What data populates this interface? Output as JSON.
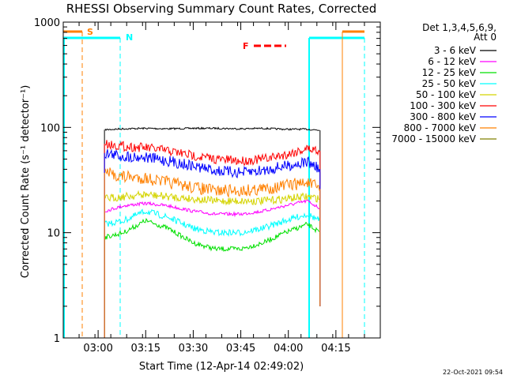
{
  "chart_data": {
    "type": "line",
    "title": "RHESSI Observing Summary Count Rates, Corrected",
    "xlabel": "Start Time (12-Apr-14 02:49:02)",
    "ylabel": "Corrected Count Rate (s⁻¹ detector⁻¹)",
    "y_scale": "log",
    "ylim": [
      1,
      1000
    ],
    "y_ticks": [
      1,
      10,
      100,
      1000
    ],
    "xlim": [
      "02:49",
      "04:29"
    ],
    "x_ticks": [
      "03:00",
      "03:15",
      "03:30",
      "03:45",
      "04:00",
      "04:15"
    ],
    "grid": false,
    "legend_position": "right",
    "legend_header": "Det 1,3,4,5,6,9,",
    "legend_subheader": "Att 0",
    "series": [
      {
        "name": "3 - 6 keV",
        "color": "#000000",
        "x": [
          "03:02",
          "03:08",
          "03:15",
          "03:22",
          "03:30",
          "03:37",
          "03:45",
          "03:52",
          "03:59",
          "04:06",
          "04:10"
        ],
        "values": [
          95,
          97,
          98,
          97,
          98,
          98,
          97,
          98,
          96,
          96,
          94
        ]
      },
      {
        "name": "6 - 12 keV",
        "color": "#ff00ff",
        "x": [
          "03:02",
          "03:08",
          "03:15",
          "03:22",
          "03:30",
          "03:37",
          "03:45",
          "03:52",
          "03:59",
          "04:06",
          "04:10"
        ],
        "values": [
          16,
          18,
          19,
          18,
          16,
          15,
          15,
          16,
          18,
          20,
          17
        ]
      },
      {
        "name": "12 - 25 keV",
        "color": "#00e000",
        "x": [
          "03:02",
          "03:08",
          "03:15",
          "03:22",
          "03:30",
          "03:37",
          "03:45",
          "03:52",
          "03:59",
          "04:06",
          "04:10"
        ],
        "values": [
          9,
          10,
          13,
          11,
          8,
          7,
          7,
          8,
          10,
          12,
          10
        ]
      },
      {
        "name": "25 - 50 keV",
        "color": "#00ffff",
        "x": [
          "03:02",
          "03:08",
          "03:15",
          "03:22",
          "03:30",
          "03:37",
          "03:45",
          "03:52",
          "03:59",
          "04:06",
          "04:10"
        ],
        "values": [
          12,
          13,
          16,
          14,
          11,
          10,
          10,
          11,
          13,
          15,
          13
        ]
      },
      {
        "name": "50 - 100 keV",
        "color": "#d4d400",
        "x": [
          "03:02",
          "03:08",
          "03:15",
          "03:22",
          "03:30",
          "03:37",
          "03:45",
          "03:52",
          "03:59",
          "04:06",
          "04:10"
        ],
        "values": [
          21,
          22,
          23,
          22,
          21,
          20,
          20,
          20,
          21,
          22,
          21
        ]
      },
      {
        "name": "100 - 300 keV",
        "color": "#ff0000",
        "x": [
          "03:02",
          "03:08",
          "03:15",
          "03:22",
          "03:30",
          "03:37",
          "03:45",
          "03:52",
          "03:59",
          "04:06",
          "04:10"
        ],
        "values": [
          70,
          66,
          64,
          60,
          54,
          50,
          48,
          50,
          55,
          63,
          60
        ]
      },
      {
        "name": "300 - 800 keV",
        "color": "#0000ff",
        "x": [
          "03:02",
          "03:08",
          "03:15",
          "03:22",
          "03:30",
          "03:37",
          "03:45",
          "03:52",
          "03:59",
          "04:06",
          "04:10"
        ],
        "values": [
          57,
          53,
          52,
          48,
          43,
          39,
          37,
          39,
          43,
          47,
          40
        ]
      },
      {
        "name": "800 - 7000 keV",
        "color": "#ff8000",
        "x": [
          "03:02",
          "03:08",
          "03:15",
          "03:22",
          "03:30",
          "03:37",
          "03:45",
          "03:52",
          "03:59",
          "04:06",
          "04:10"
        ],
        "values": [
          37,
          34,
          33,
          30,
          27,
          25,
          25,
          26,
          28,
          30,
          26
        ]
      },
      {
        "name": "7000 - 15000 keV",
        "color": "#808000",
        "x": [],
        "values": []
      }
    ],
    "annotations": [
      {
        "label": "S",
        "color": "#ff8000"
      },
      {
        "label": "N",
        "color": "#00ffff"
      },
      {
        "label": "F",
        "color": "#ff0000"
      }
    ],
    "footer_date": "22-Oct-2021 09:54"
  }
}
